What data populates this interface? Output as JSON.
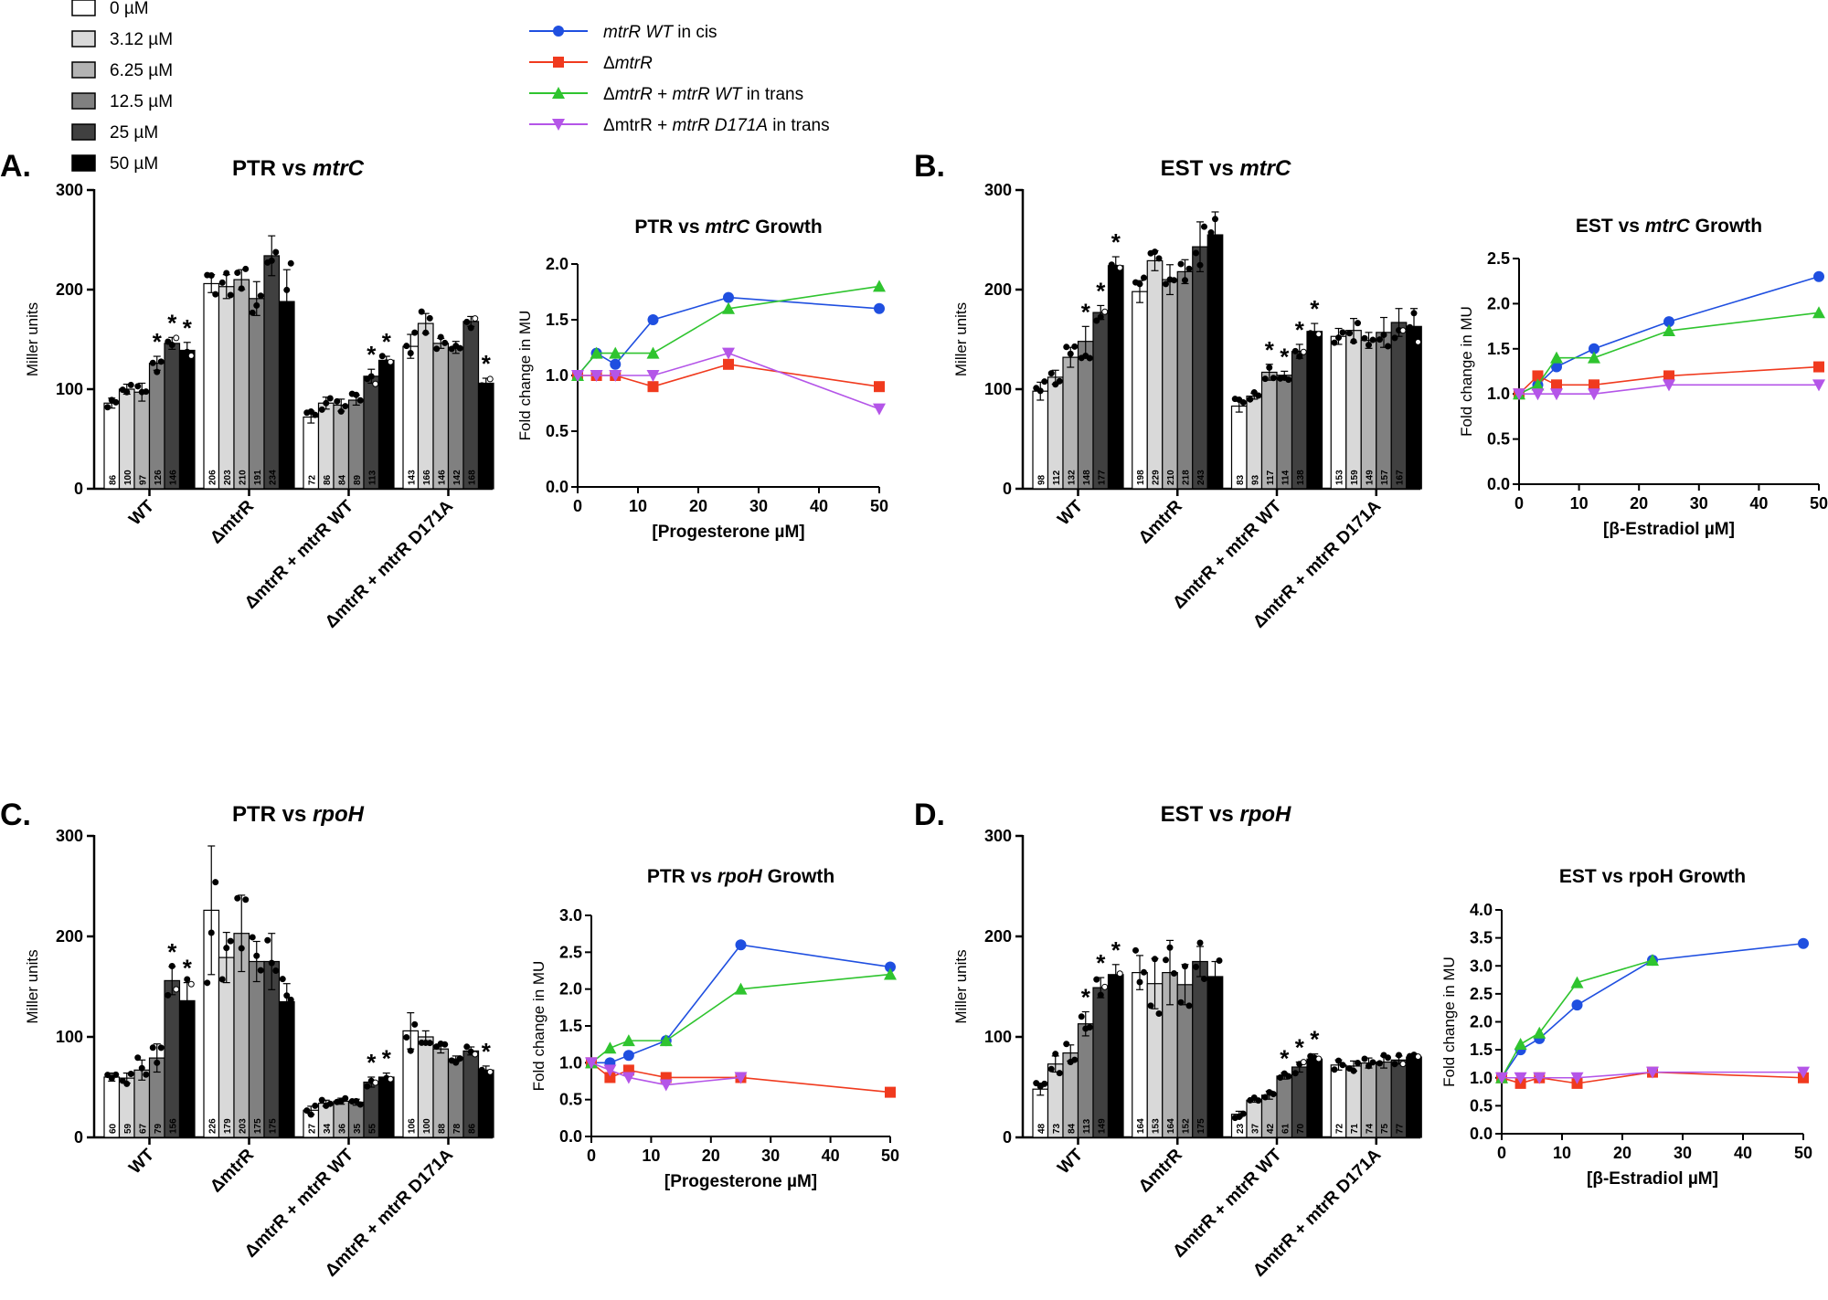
{
  "legend_conc": [
    {
      "label": "0 µM",
      "color": "#ffffff"
    },
    {
      "label": "3.12 µM",
      "color": "#d9d9d9"
    },
    {
      "label": "6.25 µM",
      "color": "#b3b3b3"
    },
    {
      "label": "12.5 µM",
      "color": "#808080"
    },
    {
      "label": "25 µM",
      "color": "#404040"
    },
    {
      "label": "50 µM",
      "color": "#000000"
    }
  ],
  "legend_strains": [
    {
      "parts": [
        {
          "t": "mtrR WT",
          "i": true
        },
        {
          "t": " in cis",
          "i": false
        }
      ],
      "color": "#1f4fe0",
      "marker": "circle"
    },
    {
      "parts": [
        {
          "t": "Δ",
          "i": false
        },
        {
          "t": "mtrR",
          "i": true
        }
      ],
      "color": "#f03a1e",
      "marker": "square"
    },
    {
      "parts": [
        {
          "t": "Δ",
          "i": false
        },
        {
          "t": "mtrR",
          "i": true
        },
        {
          "t": " + ",
          "i": false
        },
        {
          "t": "mtrR WT",
          "i": true
        },
        {
          "t": " in trans",
          "i": false
        }
      ],
      "color": "#2fc42f",
      "marker": "triangle"
    },
    {
      "parts": [
        {
          "t": "ΔmtrR + ",
          "i": false
        },
        {
          "t": "mtrR D171A",
          "i": true
        },
        {
          "t": " in trans",
          "i": false
        }
      ],
      "color": "#b455e8",
      "marker": "triangle-down"
    }
  ],
  "groups": [
    "WT",
    "ΔmtrR",
    "ΔmtrR + mtrR WT",
    "ΔmtrR + mtrR D171A"
  ],
  "chart_data": [
    {
      "type": "bar",
      "panel": "A.",
      "title": [
        {
          "t": "PTR vs ",
          "i": false
        },
        {
          "t": "mtrC",
          "i": true
        }
      ],
      "ylabel": "Miller units",
      "ylim": [
        0,
        300
      ],
      "yticks": [
        0,
        100,
        200,
        300
      ],
      "series": [
        {
          "values": [
            86,
            100,
            97,
            126,
            146,
            139
          ],
          "errors": [
            5,
            5,
            9,
            7,
            6,
            8
          ],
          "stars": [
            false,
            false,
            false,
            true,
            true,
            true
          ]
        },
        {
          "values": [
            206,
            203,
            210,
            191,
            234,
            188
          ],
          "errors": [
            9,
            12,
            10,
            17,
            20,
            32
          ],
          "stars": [
            false,
            false,
            false,
            false,
            false,
            false
          ]
        },
        {
          "values": [
            72,
            86,
            84,
            89,
            113,
            129
          ],
          "errors": [
            6,
            6,
            6,
            5,
            7,
            4
          ],
          "stars": [
            false,
            false,
            false,
            false,
            true,
            true
          ]
        },
        {
          "values": [
            143,
            166,
            146,
            142,
            168,
            106
          ],
          "errors": [
            12,
            10,
            5,
            6,
            5,
            5
          ],
          "stars": [
            false,
            false,
            false,
            false,
            false,
            true
          ]
        }
      ]
    },
    {
      "type": "line",
      "panel": "",
      "title": [
        {
          "t": "PTR vs ",
          "i": false
        },
        {
          "t": "mtrC",
          "i": true
        },
        {
          "t": " Growth",
          "i": false
        }
      ],
      "xlabel": "[Progesterone µM]",
      "ylabel": "Fold change in MU",
      "xlim": [
        0,
        50
      ],
      "ylim": [
        0,
        2.0
      ],
      "xticks": [
        0,
        10,
        20,
        30,
        40,
        50
      ],
      "yticks": [
        "0.0",
        "0.5",
        "1.0",
        "1.5",
        "2.0"
      ],
      "x": [
        0,
        3.12,
        6.25,
        12.5,
        25,
        50
      ],
      "series": [
        {
          "values": [
            1.0,
            1.2,
            1.1,
            1.5,
            1.7,
            1.6
          ]
        },
        {
          "values": [
            1.0,
            1.0,
            1.0,
            0.9,
            1.1,
            0.9
          ]
        },
        {
          "values": [
            1.0,
            1.2,
            1.2,
            1.2,
            1.6,
            1.8
          ]
        },
        {
          "values": [
            1.0,
            1.0,
            1.0,
            1.0,
            1.2,
            0.7
          ]
        }
      ]
    },
    {
      "type": "bar",
      "panel": "B.",
      "title": [
        {
          "t": "EST vs ",
          "i": false
        },
        {
          "t": "mtrC",
          "i": true
        }
      ],
      "ylabel": "Miller units",
      "ylim": [
        0,
        300
      ],
      "yticks": [
        0,
        100,
        200,
        300
      ],
      "series": [
        {
          "values": [
            98,
            112,
            132,
            148,
            177,
            224
          ],
          "errors": [
            9,
            7,
            10,
            15,
            7,
            9
          ],
          "stars": [
            false,
            false,
            false,
            true,
            true,
            true
          ]
        },
        {
          "values": [
            198,
            229,
            210,
            218,
            243,
            255
          ],
          "errors": [
            11,
            10,
            15,
            12,
            25,
            23
          ],
          "stars": [
            false,
            false,
            false,
            false,
            false,
            false
          ]
        },
        {
          "values": [
            83,
            93,
            117,
            114,
            138,
            158
          ],
          "errors": [
            6,
            3,
            8,
            4,
            7,
            8
          ],
          "stars": [
            false,
            false,
            true,
            true,
            true,
            true
          ]
        },
        {
          "values": [
            153,
            159,
            149,
            157,
            167,
            163
          ],
          "errors": [
            8,
            12,
            8,
            15,
            14,
            18
          ],
          "stars": [
            false,
            false,
            false,
            false,
            false,
            false
          ]
        }
      ]
    },
    {
      "type": "line",
      "panel": "",
      "title": [
        {
          "t": "EST vs ",
          "i": false
        },
        {
          "t": "mtrC",
          "i": true
        },
        {
          "t": " Growth",
          "i": false
        }
      ],
      "xlabel": "[β-Estradiol µM]",
      "ylabel": "Fold change in MU",
      "xlim": [
        0,
        50
      ],
      "ylim": [
        0,
        2.5
      ],
      "xticks": [
        0,
        10,
        20,
        30,
        40,
        50
      ],
      "yticks": [
        "0.0",
        "0.5",
        "1.0",
        "1.5",
        "2.0",
        "2.5"
      ],
      "x": [
        0,
        3.12,
        6.25,
        12.5,
        25,
        50
      ],
      "series": [
        {
          "values": [
            1.0,
            1.1,
            1.3,
            1.5,
            1.8,
            2.3
          ]
        },
        {
          "values": [
            1.0,
            1.2,
            1.1,
            1.1,
            1.2,
            1.3
          ]
        },
        {
          "values": [
            1.0,
            1.1,
            1.4,
            1.4,
            1.7,
            1.9
          ]
        },
        {
          "values": [
            1.0,
            1.0,
            1.0,
            1.0,
            1.1,
            1.1
          ]
        }
      ]
    },
    {
      "type": "bar",
      "panel": "C.",
      "title": [
        {
          "t": "PTR vs ",
          "i": false
        },
        {
          "t": "rpoH",
          "i": true
        }
      ],
      "ylabel": "Miller units",
      "ylim": [
        0,
        300
      ],
      "yticks": [
        0,
        100,
        200,
        300
      ],
      "series": [
        {
          "values": [
            60,
            59,
            67,
            79,
            156,
            136
          ],
          "errors": [
            4,
            5,
            10,
            14,
            14,
            18
          ],
          "stars": [
            false,
            false,
            false,
            false,
            true,
            true
          ]
        },
        {
          "values": [
            226,
            179,
            203,
            175,
            175,
            135
          ],
          "errors": [
            64,
            25,
            38,
            20,
            28,
            18
          ],
          "stars": [
            false,
            false,
            false,
            false,
            false,
            false
          ]
        },
        {
          "values": [
            27,
            34,
            36,
            35,
            55,
            60
          ],
          "errors": [
            4,
            3,
            3,
            3,
            5,
            4
          ],
          "stars": [
            false,
            false,
            false,
            false,
            true,
            true
          ]
        },
        {
          "values": [
            106,
            100,
            88,
            78,
            86,
            67
          ],
          "errors": [
            18,
            6,
            4,
            3,
            4,
            4
          ],
          "stars": [
            false,
            false,
            false,
            false,
            false,
            true
          ]
        }
      ]
    },
    {
      "type": "line",
      "panel": "",
      "title": [
        {
          "t": "PTR vs ",
          "i": false
        },
        {
          "t": "rpoH",
          "i": true
        },
        {
          "t": " Growth",
          "i": false
        }
      ],
      "xlabel": "[Progesterone µM]",
      "ylabel": "Fold change in MU",
      "xlim": [
        0,
        50
      ],
      "ylim": [
        0,
        3.0
      ],
      "xticks": [
        0,
        10,
        20,
        30,
        40,
        50
      ],
      "yticks": [
        "0.0",
        "0.5",
        "1.0",
        "1.5",
        "2.0",
        "2.5",
        "3.0"
      ],
      "x": [
        0,
        3.12,
        6.25,
        12.5,
        25,
        50
      ],
      "series": [
        {
          "values": [
            1.0,
            1.0,
            1.1,
            1.3,
            2.6,
            2.3
          ]
        },
        {
          "values": [
            1.0,
            0.8,
            0.9,
            0.8,
            0.8,
            0.6
          ]
        },
        {
          "values": [
            1.0,
            1.2,
            1.3,
            1.3,
            2.0,
            2.2
          ]
        },
        {
          "values": [
            1.0,
            0.9,
            0.8,
            0.7,
            0.8,
            null
          ]
        }
      ]
    },
    {
      "type": "bar",
      "panel": "D.",
      "title": [
        {
          "t": "EST vs ",
          "i": false
        },
        {
          "t": "rpoH",
          "i": true
        }
      ],
      "ylabel": "Miller units",
      "ylim": [
        0,
        300
      ],
      "yticks": [
        0,
        100,
        200,
        300
      ],
      "series": [
        {
          "values": [
            48,
            73,
            84,
            113,
            149,
            162
          ],
          "errors": [
            6,
            8,
            8,
            12,
            10,
            10
          ],
          "stars": [
            false,
            false,
            false,
            true,
            true,
            true
          ]
        },
        {
          "values": [
            164,
            153,
            164,
            152,
            175,
            160
          ],
          "errors": [
            17,
            25,
            32,
            20,
            15,
            15
          ],
          "stars": [
            false,
            false,
            false,
            false,
            false,
            false
          ]
        },
        {
          "values": [
            23,
            37,
            42,
            61,
            70,
            78
          ],
          "errors": [
            3,
            2,
            4,
            3,
            5,
            5
          ],
          "stars": [
            false,
            false,
            false,
            true,
            true,
            true
          ]
        },
        {
          "values": [
            72,
            71,
            74,
            75,
            77,
            80
          ],
          "errors": [
            5,
            5,
            5,
            6,
            4,
            3
          ],
          "stars": [
            false,
            false,
            false,
            false,
            false,
            false
          ]
        }
      ]
    },
    {
      "type": "line",
      "panel": "",
      "title": [
        {
          "t": "EST vs rpoH Growth",
          "i": false
        }
      ],
      "xlabel": "[β-Estradiol µM]",
      "ylabel": "Fold change in MU",
      "xlim": [
        0,
        50
      ],
      "ylim": [
        0,
        4.0
      ],
      "xticks": [
        0,
        10,
        20,
        30,
        40,
        50
      ],
      "yticks": [
        "0.0",
        "0.5",
        "1.0",
        "1.5",
        "2.0",
        "2.5",
        "3.0",
        "3.5",
        "4.0"
      ],
      "x": [
        0,
        3.12,
        6.25,
        12.5,
        25,
        50
      ],
      "series": [
        {
          "values": [
            1.0,
            1.5,
            1.7,
            2.3,
            3.1,
            3.4
          ]
        },
        {
          "values": [
            1.0,
            0.9,
            1.0,
            0.9,
            1.1,
            1.0
          ]
        },
        {
          "values": [
            1.0,
            1.6,
            1.8,
            2.7,
            3.1,
            null
          ]
        },
        {
          "values": [
            1.0,
            1.0,
            1.0,
            1.0,
            1.1,
            1.1
          ]
        }
      ]
    }
  ]
}
